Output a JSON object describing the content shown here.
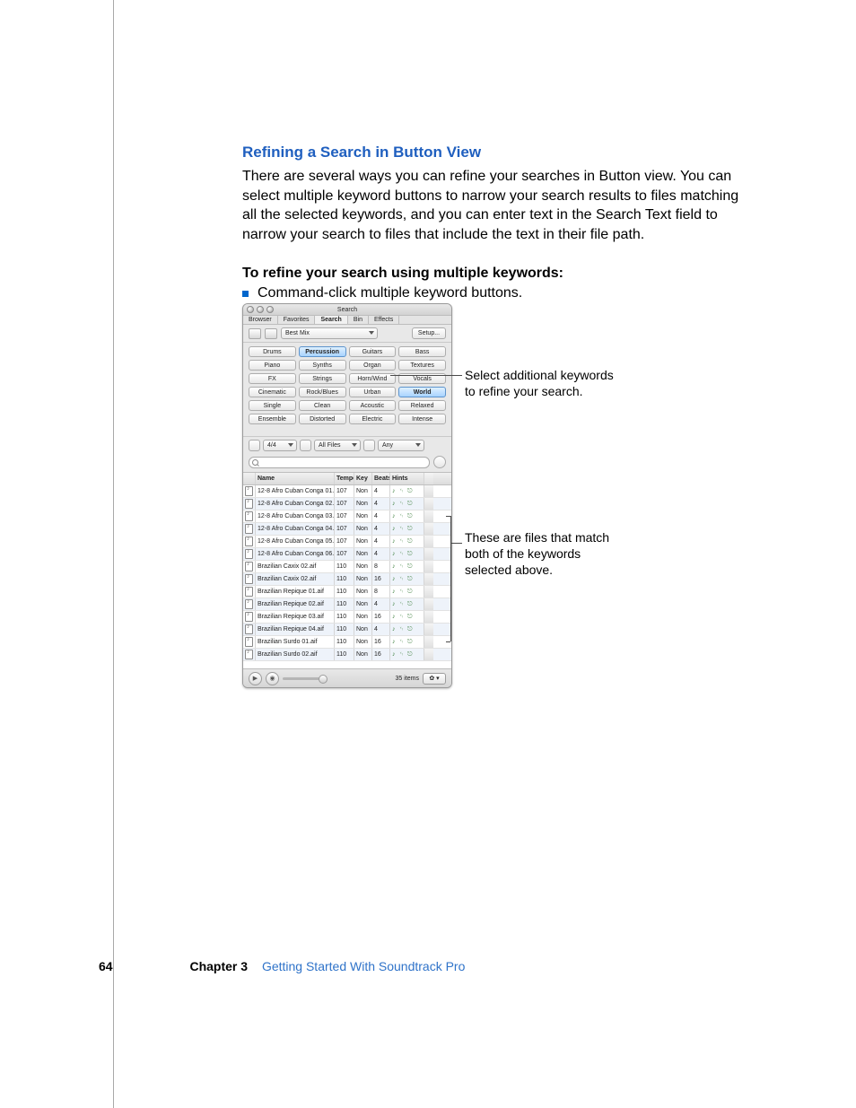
{
  "heading": "Refining a Search in Button View",
  "paragraph": "There are several ways you can refine your searches in Button view. You can select multiple keyword buttons to narrow your search results to files matching all the selected keywords, and you can enter text in the Search Text field to narrow your search to files that include the text in their file path.",
  "subhead": "To refine your search using multiple keywords:",
  "bullet": "Command-click multiple keyword buttons.",
  "callouts": {
    "top": "Select additional keywords to refine your search.",
    "bottom": "These are files that match both of the keywords selected above."
  },
  "window": {
    "title": "Search",
    "tabs": [
      "Browser",
      "Favorites",
      "Search",
      "Bin",
      "Effects"
    ],
    "active_tab": "Search",
    "category_select": "Best Mix",
    "setup_label": "Setup...",
    "keywords": [
      [
        "Drums",
        "Percussion",
        "Guitars",
        "Bass"
      ],
      [
        "Piano",
        "Synths",
        "Organ",
        "Textures"
      ],
      [
        "FX",
        "Strings",
        "Horn/Wind",
        "Vocals"
      ],
      [
        "Cinematic",
        "Rock/Blues",
        "Urban",
        "World"
      ],
      [
        "Single",
        "Clean",
        "Acoustic",
        "Relaxed"
      ],
      [
        "Ensemble",
        "Distorted",
        "Electric",
        "Intense"
      ]
    ],
    "selected_keywords": [
      "Percussion",
      "World"
    ],
    "filters": {
      "time_sig": "4/4",
      "file_type": "All Files",
      "scale": "Any"
    },
    "columns": [
      "Name",
      "Tempo",
      "Key",
      "Beats",
      "Hints"
    ],
    "rows": [
      {
        "name": "12-8 Afro Cuban Conga 01.aif",
        "tempo": "107",
        "key": "Non",
        "beats": "4"
      },
      {
        "name": "12-8 Afro Cuban Conga 02.aif",
        "tempo": "107",
        "key": "Non",
        "beats": "4"
      },
      {
        "name": "12-8 Afro Cuban Conga 03.aif",
        "tempo": "107",
        "key": "Non",
        "beats": "4"
      },
      {
        "name": "12-8 Afro Cuban Conga 04.aif",
        "tempo": "107",
        "key": "Non",
        "beats": "4"
      },
      {
        "name": "12-8 Afro Cuban Conga 05.aif",
        "tempo": "107",
        "key": "Non",
        "beats": "4"
      },
      {
        "name": "12-8 Afro Cuban Conga 06.aif",
        "tempo": "107",
        "key": "Non",
        "beats": "4"
      },
      {
        "name": "Brazilian Caxix 02.aif",
        "tempo": "110",
        "key": "Non",
        "beats": "8"
      },
      {
        "name": "Brazilian Caxix 02.aif",
        "tempo": "110",
        "key": "Non",
        "beats": "16"
      },
      {
        "name": "Brazilian Repique 01.aif",
        "tempo": "110",
        "key": "Non",
        "beats": "8"
      },
      {
        "name": "Brazilian Repique 02.aif",
        "tempo": "110",
        "key": "Non",
        "beats": "4"
      },
      {
        "name": "Brazilian Repique 03.aif",
        "tempo": "110",
        "key": "Non",
        "beats": "16"
      },
      {
        "name": "Brazilian Repique 04.aif",
        "tempo": "110",
        "key": "Non",
        "beats": "4"
      },
      {
        "name": "Brazilian Surdo 01.aif",
        "tempo": "110",
        "key": "Non",
        "beats": "16"
      },
      {
        "name": "Brazilian Surdo 02.aif",
        "tempo": "110",
        "key": "Non",
        "beats": "16"
      }
    ],
    "item_count": "35 items"
  },
  "footer": {
    "page": "64",
    "chapter_label": "Chapter 3",
    "chapter_title": "Getting Started With Soundtrack Pro"
  }
}
